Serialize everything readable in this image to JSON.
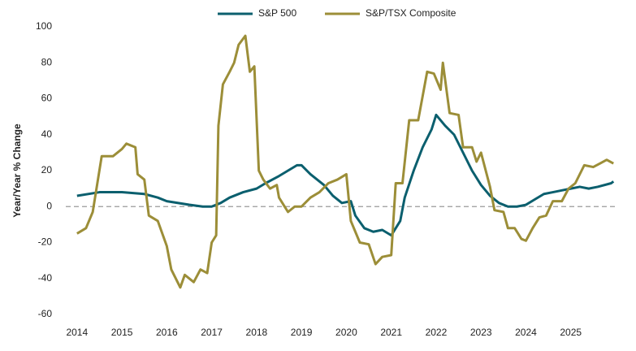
{
  "chart_data": {
    "type": "line",
    "y_label": "Year/Year % Change",
    "xlim": [
      2013.75,
      2026.0
    ],
    "xticks": [
      2014,
      2015,
      2016,
      2017,
      2018,
      2019,
      2020,
      2021,
      2022,
      2023,
      2024,
      2025
    ],
    "ylim": [
      -60,
      100
    ],
    "yticks": [
      -60,
      -40,
      -20,
      0,
      20,
      40,
      60,
      80,
      100
    ],
    "reference_line": 0,
    "legend": "top",
    "series": [
      {
        "name": "S&P 500",
        "color": "#0b5f6e",
        "x": [
          2014.0,
          2014.5,
          2015.0,
          2015.5,
          2015.8,
          2016.0,
          2016.5,
          2016.8,
          2017.0,
          2017.2,
          2017.4,
          2017.7,
          2018.0,
          2018.2,
          2018.5,
          2018.7,
          2018.9,
          2019.0,
          2019.2,
          2019.5,
          2019.7,
          2019.9,
          2020.1,
          2020.2,
          2020.4,
          2020.6,
          2020.8,
          2021.0,
          2021.2,
          2021.3,
          2021.5,
          2021.7,
          2021.9,
          2022.0,
          2022.2,
          2022.4,
          2022.6,
          2022.8,
          2023.0,
          2023.2,
          2023.4,
          2023.6,
          2023.8,
          2024.0,
          2024.2,
          2024.4,
          2024.6,
          2024.8,
          2025.0,
          2025.2,
          2025.4,
          2025.6,
          2025.9,
          2025.95
        ],
        "values": [
          6,
          8,
          8,
          7,
          5,
          3,
          1,
          0,
          0,
          2,
          5,
          8,
          10,
          13,
          17,
          20,
          23,
          23,
          18,
          12,
          6,
          2,
          3,
          -5,
          -12,
          -14,
          -13,
          -16,
          -8,
          5,
          20,
          33,
          43,
          51,
          45,
          40,
          30,
          20,
          12,
          6,
          2,
          0,
          0,
          1,
          4,
          7,
          8,
          9,
          10,
          11,
          10,
          11,
          13,
          14
        ]
      },
      {
        "name": "S&P/TSX Composite",
        "color": "#9c8e38",
        "x": [
          2014.0,
          2014.2,
          2014.35,
          2014.55,
          2014.8,
          2015.0,
          2015.1,
          2015.3,
          2015.35,
          2015.5,
          2015.6,
          2015.8,
          2016.0,
          2016.1,
          2016.3,
          2016.4,
          2016.6,
          2016.75,
          2016.9,
          2017.0,
          2017.1,
          2017.15,
          2017.25,
          2017.4,
          2017.5,
          2017.6,
          2017.75,
          2017.85,
          2017.95,
          2018.05,
          2018.15,
          2018.3,
          2018.45,
          2018.5,
          2018.7,
          2018.85,
          2019.0,
          2019.2,
          2019.4,
          2019.6,
          2019.8,
          2020.0,
          2020.1,
          2020.3,
          2020.5,
          2020.65,
          2020.8,
          2021.0,
          2021.1,
          2021.25,
          2021.4,
          2021.6,
          2021.8,
          2021.95,
          2022.1,
          2022.15,
          2022.3,
          2022.5,
          2022.6,
          2022.8,
          2022.9,
          2023.0,
          2023.2,
          2023.3,
          2023.5,
          2023.6,
          2023.75,
          2023.9,
          2024.0,
          2024.15,
          2024.3,
          2024.45,
          2024.6,
          2024.8,
          2024.95,
          2025.1,
          2025.3,
          2025.5,
          2025.65,
          2025.8,
          2025.95
        ],
        "values": [
          -15,
          -12,
          -3,
          28,
          28,
          32,
          35,
          33,
          18,
          15,
          -5,
          -8,
          -22,
          -35,
          -45,
          -38,
          -42,
          -35,
          -37,
          -20,
          -16,
          45,
          68,
          75,
          80,
          90,
          95,
          75,
          78,
          20,
          15,
          10,
          12,
          5,
          -3,
          0,
          0,
          5,
          8,
          13,
          15,
          18,
          -8,
          -20,
          -21,
          -32,
          -28,
          -27,
          13,
          13,
          48,
          48,
          75,
          74,
          65,
          80,
          52,
          51,
          33,
          33,
          25,
          30,
          11,
          -2,
          -3,
          -12,
          -12,
          -18,
          -19,
          -12,
          -6,
          -5,
          3,
          3,
          10,
          13,
          23,
          22,
          24,
          26,
          24
        ]
      }
    ]
  }
}
